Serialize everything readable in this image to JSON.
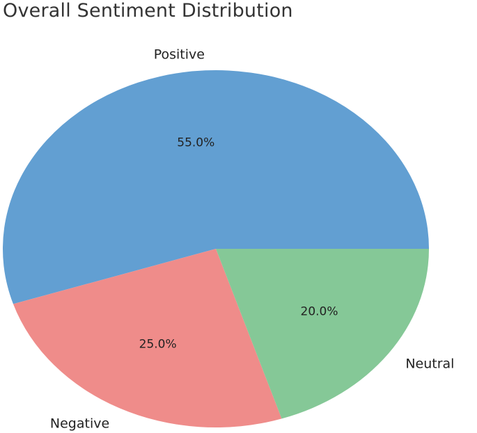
{
  "chart_data": {
    "type": "pie",
    "title": "Overall Sentiment Distribution",
    "slices": [
      {
        "label": "Positive",
        "value": 55.0,
        "pct_label": "55.0%",
        "color": "#629fd2"
      },
      {
        "label": "Negative",
        "value": 25.0,
        "pct_label": "25.0%",
        "color": "#ef8c8a"
      },
      {
        "label": "Neutral",
        "value": 20.0,
        "pct_label": "20.0%",
        "color": "#85c897"
      }
    ],
    "start_angle_deg": 0,
    "direction": "counterclockwise",
    "legend": "none"
  }
}
